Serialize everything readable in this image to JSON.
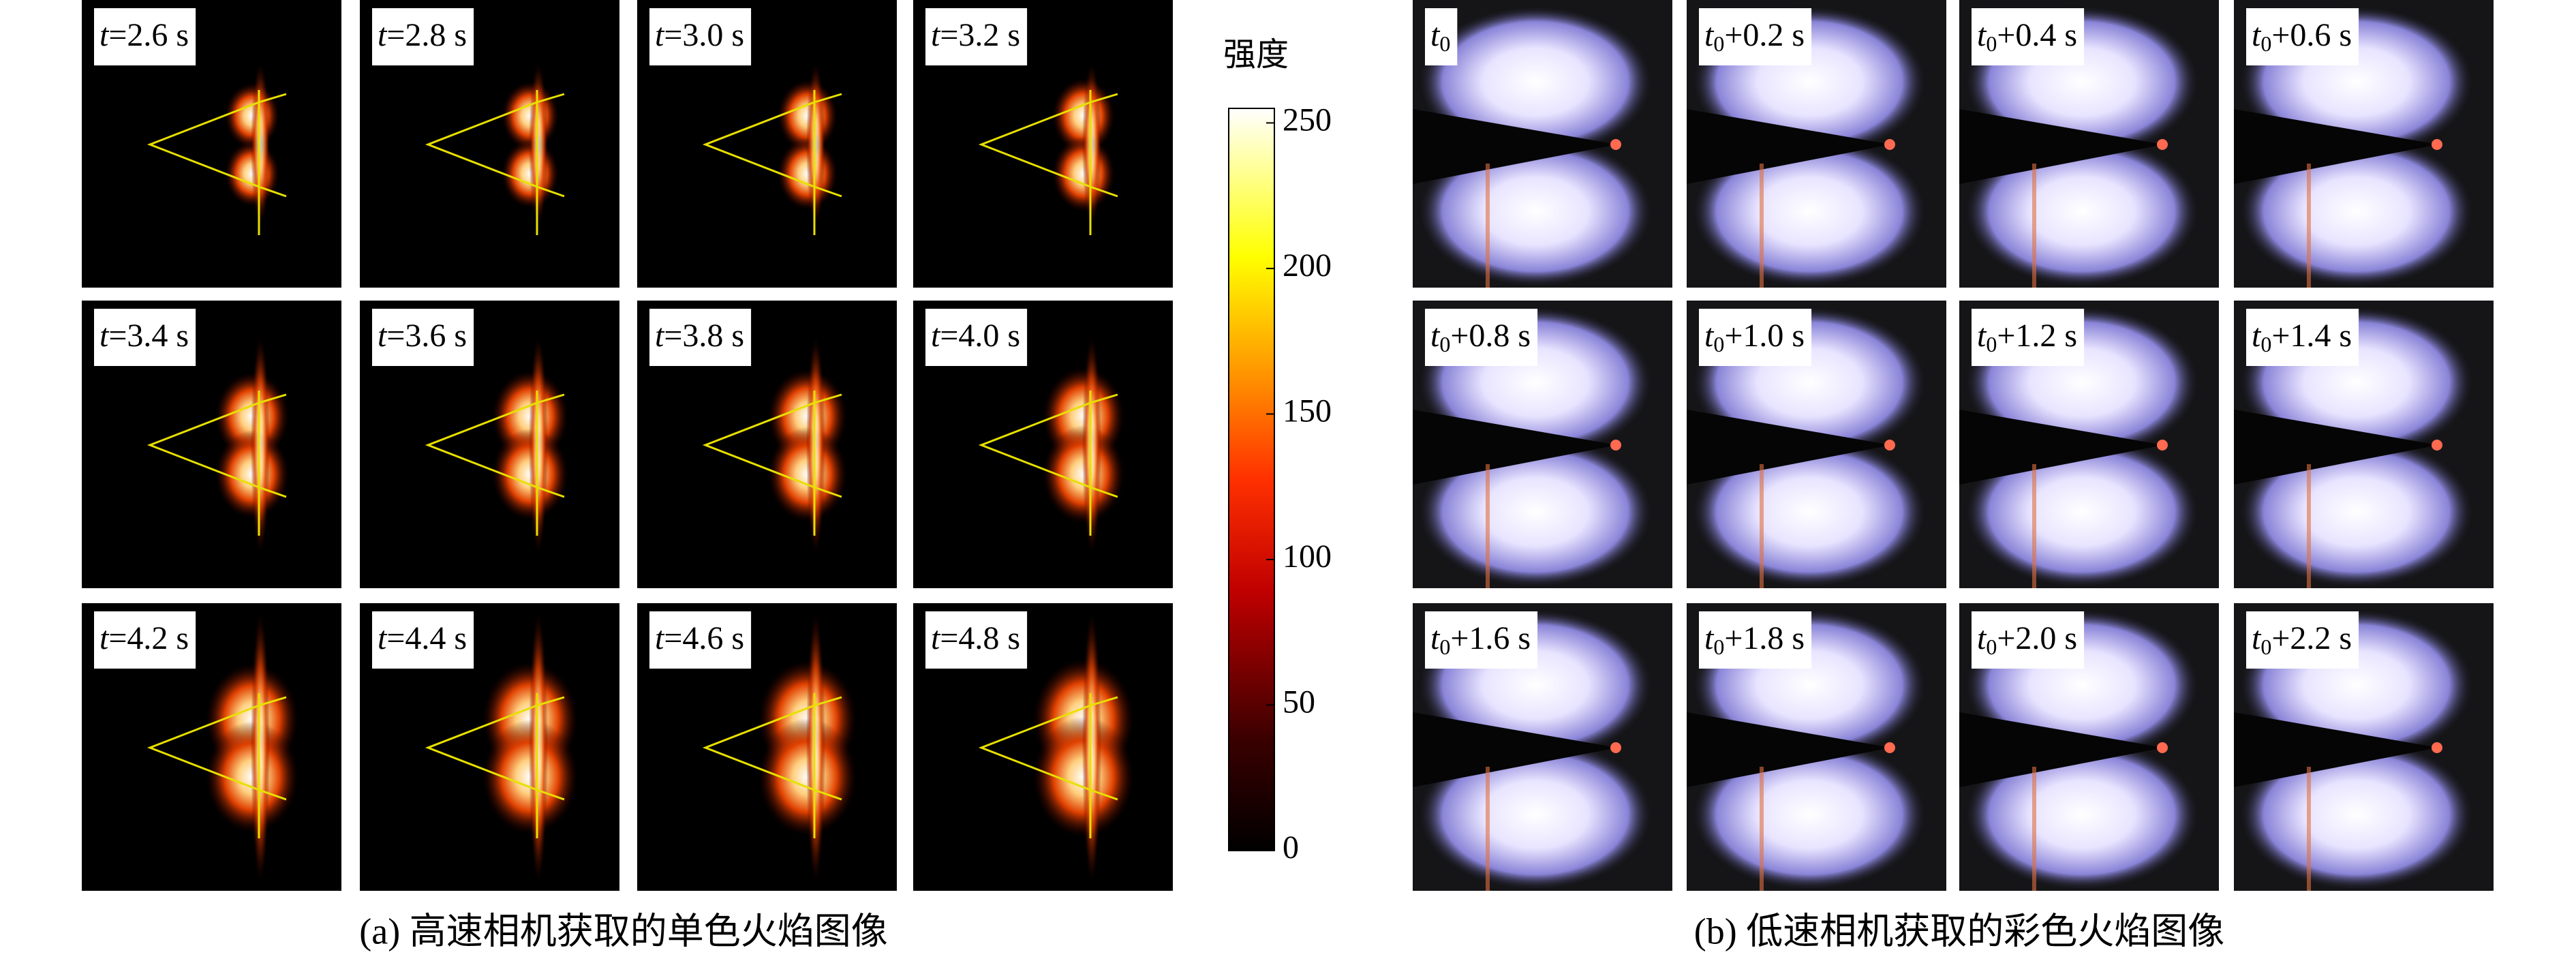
{
  "panel_a": {
    "caption": "(a) 高速相机获取的单色火焰图像",
    "labels": [
      "t=2.6 s",
      "t=2.8 s",
      "t=3.0 s",
      "t=3.2 s",
      "t=3.4 s",
      "t=3.6 s",
      "t=3.8 s",
      "t=4.0 s",
      "t=4.2 s",
      "t=4.4 s",
      "t=4.6 s",
      "t=4.8 s"
    ]
  },
  "colorbar": {
    "title": "强度",
    "ylim": [
      0,
      255
    ],
    "yticks": [
      0,
      50,
      100,
      150,
      200,
      250
    ]
  },
  "panel_b": {
    "caption": "(b) 低速相机获取的彩色火焰图像",
    "labels": [
      "t0",
      "t0+0.2 s",
      "t0+0.4 s",
      "t0+0.6 s",
      "t0+0.8 s",
      "t0+1.0 s",
      "t0+1.2 s",
      "t0+1.4 s",
      "t0+1.6 s",
      "t0+1.8 s",
      "t0+2.0 s",
      "t0+2.2 s"
    ]
  }
}
